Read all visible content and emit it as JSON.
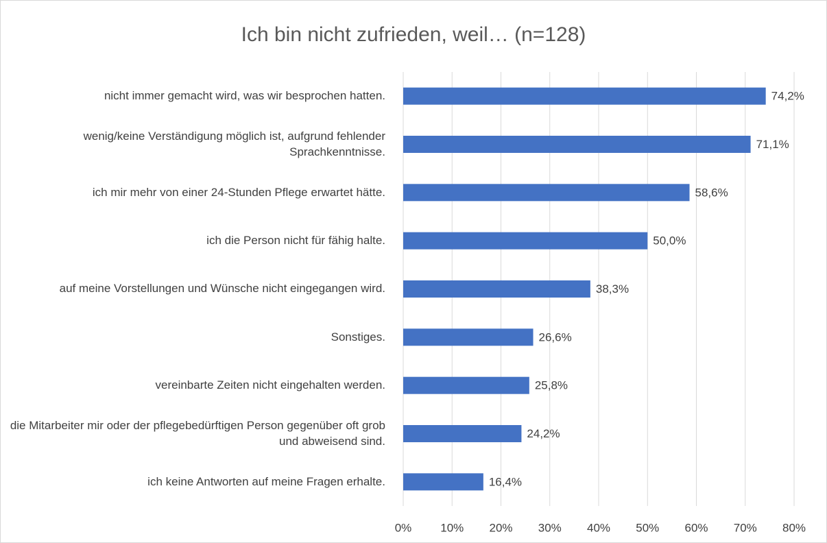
{
  "chart_data": {
    "type": "bar",
    "orientation": "horizontal",
    "title": "Ich bin nicht zufrieden, weil… (n=128)",
    "categories": [
      "nicht immer gemacht wird, was wir besprochen hatten.",
      "wenig/keine Verständigung möglich ist, aufgrund fehlender Sprachkenntnisse.",
      "ich mir mehr von einer 24-Stunden Pflege erwartet hätte.",
      "ich die Person nicht für fähig halte.",
      "auf meine Vorstellungen und Wünsche nicht eingegangen wird.",
      "Sonstiges.",
      "vereinbarte Zeiten nicht eingehalten werden.",
      "die Mitarbeiter mir oder der pflegebedürftigen Person gegenüber oft grob und abweisend sind.",
      "ich keine Antworten auf meine Fragen erhalte."
    ],
    "values": [
      74.2,
      71.1,
      58.6,
      50.0,
      38.3,
      26.6,
      25.8,
      24.2,
      16.4
    ],
    "value_labels": [
      "74,2%",
      "71,1%",
      "58,6%",
      "50,0%",
      "38,3%",
      "26,6%",
      "25,8%",
      "24,2%",
      "16,4%"
    ],
    "color": "#4472c4",
    "xlim": [
      0,
      80
    ],
    "xticks": [
      {
        "value": 0,
        "label": "0%"
      },
      {
        "value": 10,
        "label": "10%"
      },
      {
        "value": 20,
        "label": "20%"
      },
      {
        "value": 30,
        "label": "30%"
      },
      {
        "value": 40,
        "label": "40%"
      },
      {
        "value": 50,
        "label": "50%"
      },
      {
        "value": 60,
        "label": "60%"
      },
      {
        "value": 70,
        "label": "70%"
      },
      {
        "value": 80,
        "label": "80%"
      }
    ],
    "grid": true
  }
}
